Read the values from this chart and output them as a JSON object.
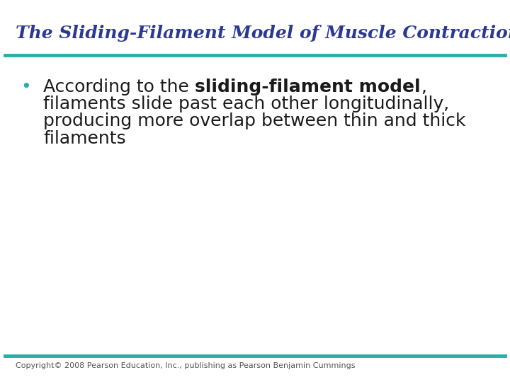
{
  "title": "The Sliding-Filament Model of Muscle Contraction",
  "title_color": "#2B3990",
  "title_fontsize": 18,
  "title_style": "italic",
  "title_weight": "bold",
  "title_font": "serif",
  "line_color": "#2AACA8",
  "line_thickness": 3.5,
  "bullet_normal1": "According to the ",
  "bullet_bold": "sliding-filament model",
  "bullet_normal2": ",",
  "bullet_line2": "filaments slide past each other longitudinally,",
  "bullet_line3": "producing more overlap between thin and thick",
  "bullet_line4": "filaments",
  "body_fontsize": 18,
  "body_color": "#1a1a1a",
  "bullet_color": "#2AACA8",
  "copyright_text": "Copyright© 2008 Pearson Education, Inc., publishing as Pearson Benjamin Cummings",
  "copyright_fontsize": 8,
  "copyright_color": "#555555",
  "bg_color": "#FFFFFF"
}
